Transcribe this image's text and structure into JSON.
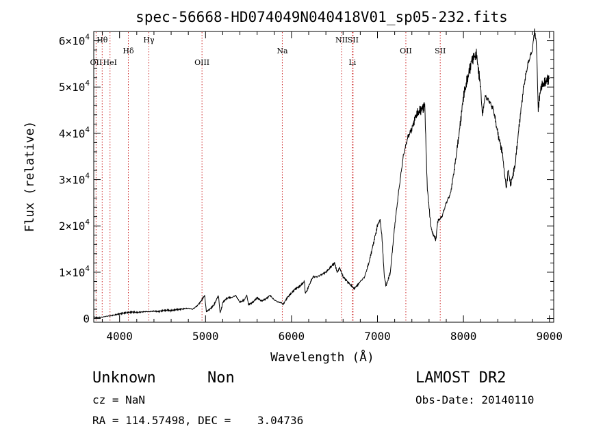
{
  "chart_data": {
    "type": "line",
    "title": "spec-56668-HD074049N040418V01_sp05-232.fits",
    "xlabel": "Wavelength (Å)",
    "ylabel": "Flux (relative)",
    "xlim": [
      3700,
      9050
    ],
    "ylim": [
      -800,
      62000
    ],
    "xticks": [
      4000,
      5000,
      6000,
      7000,
      8000,
      9000
    ],
    "xtick_labels": [
      "4000",
      "5000",
      "6000",
      "7000",
      "8000",
      "9000"
    ],
    "yticks": [
      0,
      10000,
      20000,
      30000,
      40000,
      50000,
      60000
    ],
    "ytick_labels": [
      {
        "mant": "0",
        "exp": ""
      },
      {
        "mant": "1×10",
        "exp": "4"
      },
      {
        "mant": "2×10",
        "exp": "4"
      },
      {
        "mant": "3×10",
        "exp": "4"
      },
      {
        "mant": "4×10",
        "exp": "4"
      },
      {
        "mant": "5×10",
        "exp": "4"
      },
      {
        "mant": "6×10",
        "exp": "4"
      }
    ],
    "lines": [
      {
        "label": "Hθ",
        "wavelength": 3798,
        "row": "top"
      },
      {
        "label": "OII",
        "wavelength": 3727,
        "row": "low"
      },
      {
        "label": "HeI",
        "wavelength": 3889,
        "row": "low"
      },
      {
        "label": "Hδ",
        "wavelength": 4102,
        "row": "mid"
      },
      {
        "label": "Hγ",
        "wavelength": 4341,
        "row": "top"
      },
      {
        "label": "OIII",
        "wavelength": 4959,
        "row": "low"
      },
      {
        "label": "Na",
        "wavelength": 5893,
        "row": "mid"
      },
      {
        "label": "NII",
        "wavelength": 6583,
        "row": "top"
      },
      {
        "label": "SII",
        "wavelength": 6716,
        "row": "top"
      },
      {
        "label": "Li",
        "wavelength": 6708,
        "row": "low"
      },
      {
        "label": "OII",
        "wavelength": 7330,
        "row": "mid"
      },
      {
        "label": "SII",
        "wavelength": 7730,
        "row": "mid"
      }
    ],
    "series": [
      {
        "x": [
          3700,
          3750,
          3800,
          3850,
          3900,
          3950,
          4000,
          4050,
          4100,
          4150,
          4200,
          4250,
          4300,
          4350,
          4400,
          4450,
          4500,
          4550,
          4600,
          4650,
          4700,
          4750,
          4800,
          4850,
          4900,
          4950,
          4990,
          5010,
          5050,
          5100,
          5150,
          5170,
          5190,
          5200,
          5230,
          5260,
          5300,
          5350,
          5400,
          5450,
          5480,
          5500,
          5550,
          5600,
          5650,
          5700,
          5750,
          5800,
          5850,
          5880,
          5900,
          5950,
          6000,
          6050,
          6100,
          6150,
          6160,
          6180,
          6200,
          6250,
          6300,
          6350,
          6400,
          6450,
          6500,
          6530,
          6560,
          6600,
          6650,
          6700,
          6730,
          6760,
          6800,
          6850,
          6900,
          6950,
          7000,
          7030,
          7050,
          7080,
          7100,
          7150,
          7200,
          7250,
          7300,
          7350,
          7400,
          7450,
          7500,
          7550,
          7580,
          7600,
          7620,
          7650,
          7680,
          7700,
          7750,
          7800,
          7850,
          7900,
          7950,
          8000,
          8050,
          8100,
          8150,
          8180,
          8200,
          8220,
          8250,
          8300,
          8350,
          8400,
          8450,
          8480,
          8500,
          8520,
          8550,
          8600,
          8650,
          8700,
          8750,
          8800,
          8830,
          8850,
          8870,
          8900,
          8950,
          9000
        ],
        "y": [
          300,
          200,
          300,
          500,
          600,
          800,
          1000,
          1200,
          1300,
          1400,
          1300,
          1400,
          1500,
          1500,
          1600,
          1500,
          1700,
          1800,
          1700,
          1900,
          2000,
          2100,
          2200,
          2000,
          2700,
          3800,
          5000,
          1500,
          2000,
          3000,
          5000,
          1200,
          2500,
          3500,
          4000,
          4500,
          4500,
          5000,
          3500,
          4000,
          5000,
          3000,
          3500,
          4500,
          3800,
          4200,
          5000,
          4000,
          3500,
          3500,
          3000,
          4500,
          5500,
          6500,
          7000,
          8000,
          5500,
          6000,
          7000,
          9000,
          9000,
          9500,
          10000,
          11000,
          12000,
          10000,
          11000,
          9000,
          8000,
          7000,
          6500,
          7000,
          8000,
          9000,
          12000,
          16000,
          20000,
          21500,
          18000,
          9000,
          7000,
          10000,
          20000,
          28000,
          35000,
          39000,
          41000,
          44000,
          45000,
          46000,
          28000,
          24000,
          20000,
          18000,
          17000,
          21000,
          22000,
          25000,
          27000,
          33000,
          40000,
          48000,
          52000,
          56000,
          57000,
          53000,
          50000,
          44000,
          48000,
          47000,
          45000,
          40000,
          36000,
          31000,
          28000,
          32000,
          29000,
          33000,
          42000,
          50000,
          55000,
          58000,
          62000,
          59000,
          45000,
          50000,
          51000,
          52000
        ]
      }
    ]
  },
  "footer": {
    "object_class": "Unknown",
    "subclass": "Non",
    "survey": "LAMOST DR2",
    "cz": "cz = NaN",
    "obs_date": "Obs-Date: 20140110",
    "radec": "RA = 114.57498, DEC =    3.04736"
  }
}
